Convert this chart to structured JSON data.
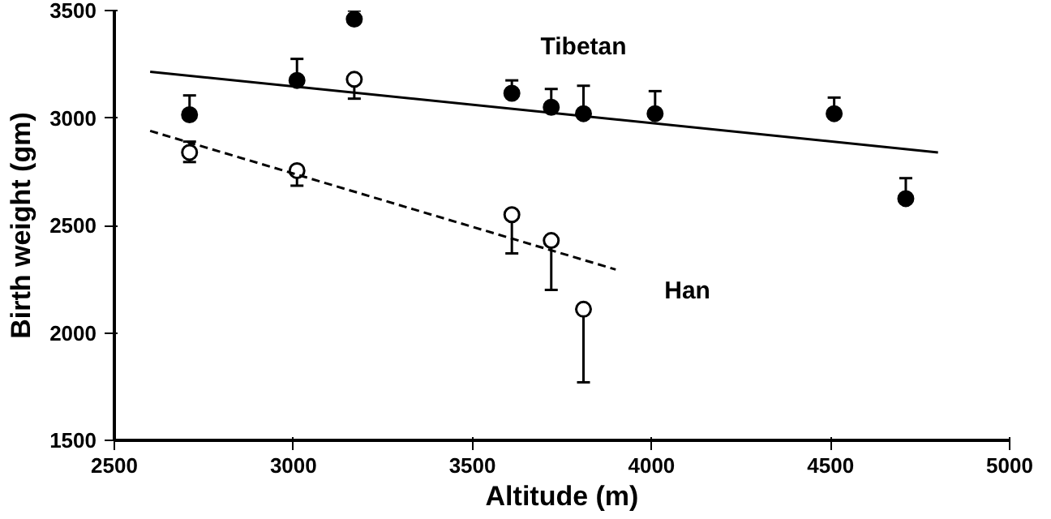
{
  "chart_data": {
    "type": "scatter",
    "xlabel": "Altitude (m)",
    "ylabel": "Birth weight (gm)",
    "xlim": [
      2500,
      5000
    ],
    "xticks": [
      2500,
      3000,
      3500,
      4000,
      4500,
      5000
    ],
    "ylim": [
      1500,
      3500
    ],
    "yticks": [
      1500,
      2000,
      2500,
      3000,
      3500
    ],
    "grid": false,
    "series": [
      {
        "marker": "circle",
        "color": "#000000",
        "x": [
          2710,
          3010,
          3170,
          3610,
          3720,
          3810,
          4010,
          4510,
          4710
        ],
        "values": [
          3015,
          3175,
          3460,
          3115,
          3050,
          3020,
          3020,
          3020,
          2625
        ],
        "errors": [
          [
            3015,
            3105
          ],
          [
            3175,
            3275
          ],
          [
            3460,
            3500
          ],
          [
            3115,
            3175
          ],
          [
            3050,
            3135
          ],
          [
            3020,
            3150
          ],
          [
            3020,
            3125
          ],
          [
            3020,
            3095
          ],
          [
            2625,
            2720
          ]
        ]
      },
      {
        "marker": "circle",
        "color": "#ffffff",
        "x": [
          2710,
          3010,
          3170,
          3610,
          3720,
          3810
        ],
        "values": [
          2840,
          2755,
          3180,
          2550,
          2430,
          2110
        ],
        "errors": [
          [
            2795,
            2890
          ],
          [
            2685,
            2755
          ],
          [
            3090,
            3180
          ],
          [
            2370,
            2550
          ],
          [
            2200,
            2430
          ],
          [
            1770,
            2110
          ]
        ]
      },
      {
        "type": "line",
        "name": "Tibetan",
        "line_style": "solid",
        "color": "#000000",
        "x": [
          2600,
          4800
        ],
        "values": [
          3215,
          2840
        ]
      },
      {
        "type": "line",
        "name": "Han",
        "line_style": "dashed",
        "color": "#000000",
        "x": [
          2600,
          3900
        ],
        "values": [
          2940,
          2295
        ]
      }
    ]
  }
}
